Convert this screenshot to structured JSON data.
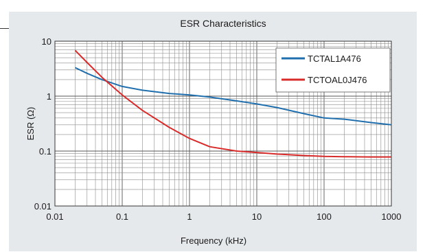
{
  "chart_data": {
    "type": "line",
    "title": "ESR Characteristics",
    "xlabel": "Frequency (kHz)",
    "ylabel": "ESR (Ω)",
    "xscale": "log",
    "yscale": "log",
    "xlim": [
      0.01,
      1000
    ],
    "ylim": [
      0.01,
      10
    ],
    "xticks": [
      "0.01",
      "0.1",
      "1",
      "10",
      "100",
      "1000"
    ],
    "yticks": [
      "0.01",
      "0.1",
      "1",
      "10"
    ],
    "grid": true,
    "legend_position": "top-right",
    "series": [
      {
        "name": "TCTAL1A476",
        "color": "#1f6fae",
        "x": [
          0.02,
          0.03,
          0.05,
          0.1,
          0.2,
          0.5,
          1,
          2,
          5,
          10,
          20,
          50,
          100,
          200,
          500,
          1000
        ],
        "y": [
          3.3,
          2.6,
          2.0,
          1.5,
          1.28,
          1.12,
          1.05,
          0.96,
          0.82,
          0.72,
          0.62,
          0.48,
          0.4,
          0.38,
          0.33,
          0.3
        ]
      },
      {
        "name": "TCTOAL0J476",
        "color": "#d92a2a",
        "x": [
          0.02,
          0.03,
          0.05,
          0.1,
          0.2,
          0.5,
          1,
          2,
          5,
          10,
          20,
          50,
          100,
          200,
          500,
          1000
        ],
        "y": [
          6.8,
          4.1,
          2.2,
          1.05,
          0.55,
          0.27,
          0.17,
          0.12,
          0.1,
          0.094,
          0.088,
          0.083,
          0.08,
          0.079,
          0.078,
          0.078
        ]
      }
    ]
  }
}
